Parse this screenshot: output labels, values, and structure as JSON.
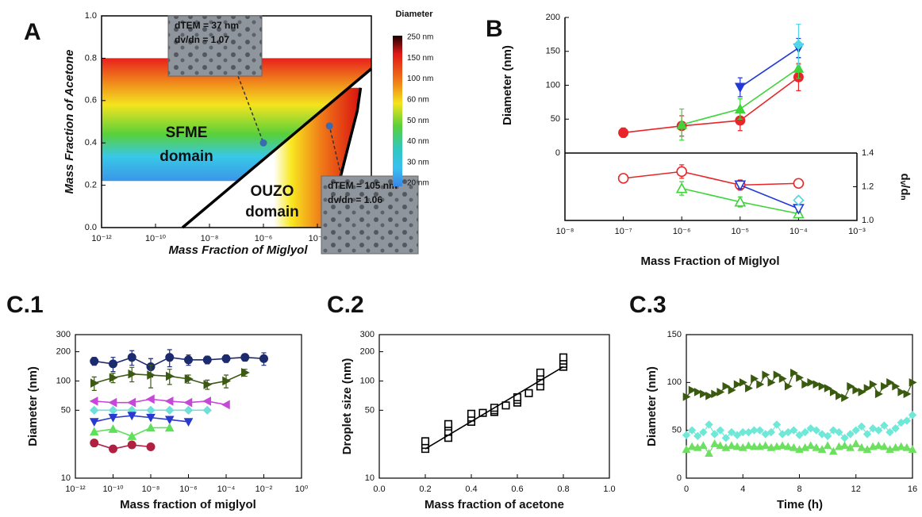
{
  "chart_data": [
    {
      "type": "phase",
      "label": "A",
      "xlabel": "Mass Fraction of Miglyol",
      "ylabel": "Mass Fraction of Acetone",
      "xlog": true,
      "xlim": [
        1e-12,
        0.01
      ],
      "xticks": [
        {
          "value": 1e-12,
          "label": "10⁻¹²"
        },
        {
          "value": 1e-10,
          "label": "10⁻¹⁰"
        },
        {
          "value": 1e-08,
          "label": "10⁻⁸"
        },
        {
          "value": 1e-06,
          "label": "10⁻⁶"
        },
        {
          "value": 0.0001,
          "label": "10⁻⁴"
        }
      ],
      "ylim": [
        0,
        1
      ],
      "yticks": [
        {
          "value": 0,
          "label": "0.0"
        },
        0.2,
        0.4,
        0.6,
        0.8,
        {
          "value": 1,
          "label": "1.0"
        }
      ],
      "sfme_band": [
        0.22,
        0.8
      ],
      "series": [
        {
          "color": "#000000",
          "x": [
            1e-09,
            0.01
          ],
          "values": [
            0,
            0.75
          ]
        },
        {
          "color": "#000000",
          "x": [
            0.0002,
            0.0006,
            0.0015,
            0.003,
            0.004
          ],
          "values": [
            0,
            0.2,
            0.4,
            0.55,
            0.66
          ]
        }
      ],
      "colorbar": {
        "title": "Diameter",
        "labels": [
          "250 nm",
          "150 nm",
          "100 nm",
          "60 nm",
          "50 nm",
          "40 nm",
          "30 nm",
          "20 nm"
        ]
      },
      "region_labels": [
        [
          "SFME",
          "domain"
        ],
        [
          "OUZO",
          "domain"
        ]
      ],
      "insets": [
        {
          "lines": [
            "dTEM = 37 nm",
            "dv/dn = 1.07"
          ],
          "x": 1e-06,
          "y": 0.4
        },
        {
          "lines": [
            "dTEM = 105 nm",
            "dv/dn = 1.06"
          ],
          "x": 0.00028,
          "y": 0.48
        }
      ]
    },
    {
      "type": "line",
      "label": "B",
      "xlabel": "Mass Fraction of Miglyol",
      "ylabel": "Diameter (nm)",
      "y2label": "dᵥ/dₙ",
      "xlog": true,
      "xlim": [
        1e-08,
        0.001
      ],
      "xticks": [
        {
          "value": 1e-08,
          "label": "10⁻⁸"
        },
        {
          "value": 1e-07,
          "label": "10⁻⁷"
        },
        {
          "value": 1e-06,
          "label": "10⁻⁶"
        },
        {
          "value": 1e-05,
          "label": "10⁻⁵"
        },
        {
          "value": 0.0001,
          "label": "10⁻⁴"
        },
        {
          "value": 0.001,
          "label": "10⁻³"
        }
      ],
      "ylim": [
        0,
        200
      ],
      "yticks": [
        0,
        50,
        100,
        150,
        200
      ],
      "y2lim": [
        1,
        1.4
      ],
      "y2ticks": [
        {
          "value": 1,
          "label": "1.0"
        },
        1.2,
        1.4
      ],
      "series": [
        {
          "color": "#e8262a",
          "marker": "circle",
          "filled": true,
          "line": true,
          "x": [
            1e-07,
            1e-06,
            1e-05,
            0.0001
          ],
          "values": [
            30,
            40,
            48,
            112
          ],
          "errors": [
            7,
            15,
            15,
            20
          ]
        },
        {
          "color": "#3ed43a",
          "marker": "triangle-up",
          "filled": true,
          "line": true,
          "x": [
            1e-06,
            1e-05,
            0.0001
          ],
          "values": [
            42,
            65,
            125
          ],
          "errors": [
            23,
            15,
            15
          ]
        },
        {
          "color": "#2238d8",
          "marker": "triangle-down",
          "filled": true,
          "line": true,
          "x": [
            1e-05,
            0.0001
          ],
          "values": [
            97,
            155
          ],
          "errors": [
            14,
            14
          ]
        },
        {
          "color": "#4fd8e8",
          "marker": "diamond",
          "filled": true,
          "line": true,
          "x": [
            0.0001
          ],
          "values": [
            160
          ],
          "errors": [
            30
          ]
        },
        {
          "color": "#e8262a",
          "marker": "circle",
          "filled": false,
          "line": true,
          "axis": "y2",
          "x": [
            1e-07,
            1e-06,
            1e-05,
            0.0001
          ],
          "values": [
            1.25,
            1.29,
            1.21,
            1.22
          ],
          "errors": [
            0.02,
            0.04,
            0.03,
            0.01
          ]
        },
        {
          "color": "#3ed43a",
          "marker": "triangle-up",
          "filled": false,
          "line": true,
          "axis": "y2",
          "x": [
            1e-06,
            1e-05,
            0.0001
          ],
          "values": [
            1.19,
            1.11,
            1.04
          ],
          "errors": [
            0.04,
            0.03,
            0.01
          ]
        },
        {
          "color": "#2238d8",
          "marker": "triangle-down",
          "filled": false,
          "line": true,
          "axis": "y2",
          "x": [
            1e-05,
            0.0001
          ],
          "values": [
            1.21,
            1.07
          ],
          "errors": [
            0.02,
            0.02
          ]
        },
        {
          "color": "#4fd8e8",
          "marker": "diamond",
          "filled": false,
          "line": true,
          "axis": "y2",
          "x": [
            0.0001
          ],
          "values": [
            1.12
          ],
          "errors": [
            0.02
          ]
        }
      ]
    },
    {
      "type": "line",
      "label": "C.1",
      "xlabel": "Mass fraction of miglyol",
      "ylabel": "Diameter (nm)",
      "xlog": true,
      "xlim": [
        1e-12,
        1
      ],
      "xticks": [
        {
          "value": 1e-12,
          "label": "10⁻¹²"
        },
        {
          "value": 1e-10,
          "label": "10⁻¹⁰"
        },
        {
          "value": 1e-08,
          "label": "10⁻⁸"
        },
        {
          "value": 1e-06,
          "label": "10⁻⁶"
        },
        {
          "value": 0.0001,
          "label": "10⁻⁴"
        },
        {
          "value": 0.01,
          "label": "10⁻²"
        },
        {
          "value": 1,
          "label": "10⁰"
        }
      ],
      "ylog": true,
      "ylim": [
        10,
        300
      ],
      "yticks": [
        10,
        50,
        100,
        200,
        300
      ],
      "series": [
        {
          "color": "#1c2a6e",
          "marker": "circle",
          "filled": true,
          "line": true,
          "x": [
            1e-11,
            1e-10,
            1e-09,
            1e-08,
            1e-07,
            1e-06,
            1e-05,
            0.0001,
            0.001,
            0.01
          ],
          "values": [
            160,
            150,
            175,
            140,
            175,
            165,
            165,
            170,
            175,
            170
          ],
          "errors": [
            15,
            25,
            30,
            30,
            35,
            20,
            15,
            15,
            15,
            25
          ]
        },
        {
          "color": "#3d5a14",
          "marker": "triangle-right",
          "filled": true,
          "line": true,
          "x": [
            1e-11,
            1e-10,
            1e-09,
            1e-08,
            1e-07,
            1e-06,
            1e-05,
            0.0001,
            0.001
          ],
          "values": [
            95,
            108,
            118,
            115,
            112,
            105,
            92,
            100,
            122
          ],
          "errors": [
            15,
            12,
            20,
            30,
            20,
            10,
            10,
            15,
            10
          ]
        },
        {
          "color": "#c648d8",
          "marker": "triangle-left",
          "filled": true,
          "line": true,
          "x": [
            1e-11,
            1e-10,
            1e-09,
            1e-08,
            1e-07,
            1e-06,
            1e-05,
            0.0001
          ],
          "values": [
            62,
            60,
            60,
            65,
            62,
            60,
            62,
            57
          ]
        },
        {
          "color": "#6fe0d8",
          "marker": "diamond",
          "filled": true,
          "line": true,
          "x": [
            1e-11,
            1e-10,
            1e-09,
            1e-08,
            1e-07,
            1e-06,
            1e-05
          ],
          "values": [
            50,
            50,
            50,
            50,
            50,
            50,
            50
          ]
        },
        {
          "color": "#2a3ad0",
          "marker": "triangle-down",
          "filled": true,
          "line": true,
          "x": [
            1e-11,
            1e-10,
            1e-09,
            1e-08,
            1e-07,
            1e-06
          ],
          "values": [
            38,
            42,
            44,
            42,
            40,
            38
          ]
        },
        {
          "color": "#5ee05a",
          "marker": "triangle-up",
          "filled": true,
          "line": true,
          "x": [
            1e-11,
            1e-10,
            1e-09,
            1e-08,
            1e-07
          ],
          "values": [
            30,
            32,
            27,
            33,
            33
          ]
        },
        {
          "color": "#b02040",
          "marker": "circle",
          "filled": true,
          "line": true,
          "x": [
            1e-11,
            1e-10,
            1e-09,
            1e-08
          ],
          "values": [
            23,
            20,
            22,
            21
          ]
        }
      ]
    },
    {
      "type": "scatter",
      "label": "C.2",
      "xlabel": "Mass fraction of acetone",
      "ylabel": "Droplet size (nm)",
      "xlim": [
        0,
        1
      ],
      "xticks": [
        {
          "value": 0,
          "label": "0.0"
        },
        0.2,
        0.4,
        0.6,
        0.8,
        {
          "value": 1,
          "label": "1.0"
        }
      ],
      "ylog": true,
      "ylim": [
        10,
        300
      ],
      "yticks": [
        10,
        50,
        100,
        200,
        300
      ],
      "series": [
        {
          "color": "#000000",
          "marker": "square",
          "filled": false,
          "line": false,
          "x": [
            0.2,
            0.2,
            0.2,
            0.3,
            0.3,
            0.3,
            0.3,
            0.4,
            0.4,
            0.4,
            0.45,
            0.5,
            0.5,
            0.5,
            0.55,
            0.6,
            0.6,
            0.6,
            0.65,
            0.7,
            0.7,
            0.7,
            0.7,
            0.8,
            0.8,
            0.8,
            0.8
          ],
          "values": [
            20,
            22,
            24,
            26,
            30,
            34,
            36,
            38,
            42,
            46,
            47,
            48,
            50,
            53,
            56,
            60,
            64,
            68,
            75,
            88,
            100,
            112,
            122,
            140,
            150,
            162,
            175
          ]
        },
        {
          "color": "#000000",
          "line": true,
          "x": [
            0.2,
            0.8
          ],
          "values": [
            20,
            140
          ]
        }
      ]
    },
    {
      "type": "line",
      "label": "C.3",
      "xlabel": "Time (h)",
      "ylabel": "Diameter (nm)",
      "xlim": [
        0,
        16
      ],
      "xticks": [
        0,
        4,
        8,
        12,
        16
      ],
      "ylim": [
        0,
        150
      ],
      "yticks": [
        0,
        50,
        100,
        150
      ],
      "x": [
        0,
        0.4,
        0.8,
        1.2,
        1.6,
        2,
        2.4,
        2.8,
        3.2,
        3.6,
        4,
        4.4,
        4.8,
        5.2,
        5.6,
        6,
        6.4,
        6.8,
        7.2,
        7.6,
        8,
        8.4,
        8.8,
        9.2,
        9.6,
        10,
        10.4,
        10.8,
        11.2,
        11.6,
        12,
        12.4,
        12.8,
        13.2,
        13.6,
        14,
        14.4,
        14.8,
        15.2,
        15.6,
        16
      ],
      "series": [
        {
          "color": "#3a5a10",
          "marker": "triangle-right",
          "filled": true,
          "line": true,
          "values": [
            85,
            92,
            90,
            88,
            86,
            88,
            90,
            96,
            92,
            98,
            100,
            94,
            104,
            98,
            108,
            100,
            108,
            104,
            96,
            110,
            105,
            98,
            100,
            98,
            96,
            94,
            90,
            86,
            84,
            96,
            92,
            90,
            94,
            98,
            88,
            96,
            100,
            96,
            90,
            88,
            100
          ]
        },
        {
          "color": "#70e8d8",
          "marker": "diamond",
          "filled": true,
          "line": true,
          "values": [
            45,
            50,
            44,
            48,
            56,
            46,
            50,
            42,
            48,
            45,
            48,
            48,
            50,
            50,
            46,
            48,
            56,
            46,
            48,
            50,
            45,
            48,
            52,
            50,
            46,
            44,
            50,
            48,
            42,
            46,
            50,
            54,
            46,
            52,
            50,
            55,
            48,
            52,
            58,
            60,
            66
          ]
        },
        {
          "color": "#6ee060",
          "marker": "triangle-up",
          "filled": true,
          "line": true,
          "values": [
            30,
            33,
            32,
            34,
            26,
            36,
            34,
            32,
            34,
            33,
            32,
            34,
            33,
            33,
            34,
            32,
            33,
            34,
            33,
            32,
            30,
            32,
            34,
            32,
            30,
            34,
            28,
            33,
            34,
            32,
            36,
            32,
            30,
            33,
            34,
            33,
            30,
            32,
            33,
            32,
            30
          ]
        }
      ]
    }
  ]
}
